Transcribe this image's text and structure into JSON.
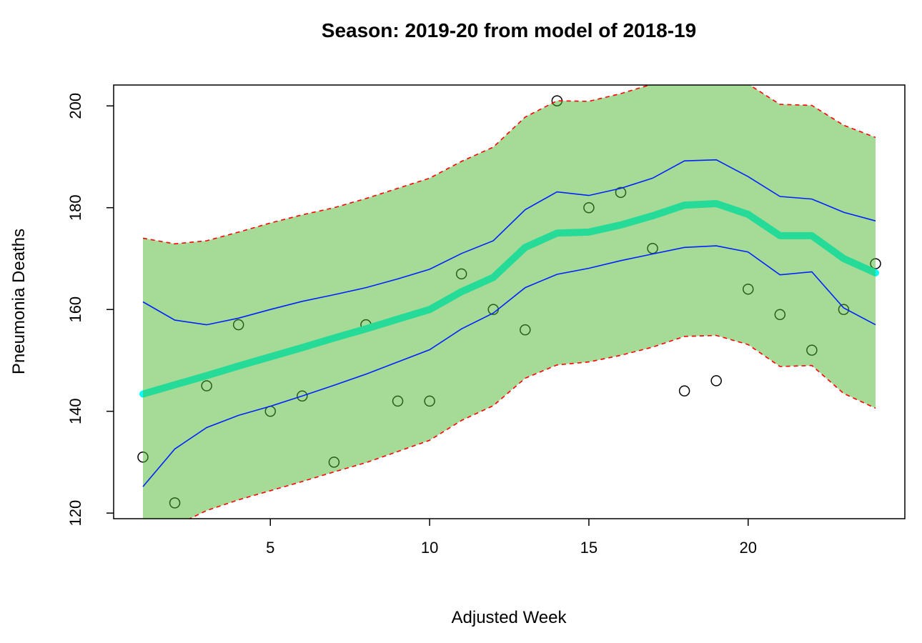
{
  "chart_data": {
    "type": "line",
    "title": "Season: 2019-20 from model of 2018-19",
    "xlabel": "Adjusted Week",
    "ylabel": "Pneumonia Deaths",
    "xlim": [
      0.08,
      24.92
    ],
    "ylim": [
      118.9,
      204.1
    ],
    "xticks": [
      5,
      10,
      15,
      20
    ],
    "yticks": [
      120,
      140,
      160,
      180,
      200
    ],
    "grid": false,
    "x": [
      1,
      2,
      3,
      4,
      5,
      6,
      7,
      8,
      9,
      10,
      11,
      12,
      13,
      14,
      15,
      16,
      17,
      18,
      19,
      20,
      21,
      22,
      23,
      24
    ],
    "observed": [
      131,
      122,
      145,
      157,
      140,
      143,
      130,
      157,
      142,
      142,
      167,
      160,
      156,
      201,
      180,
      183,
      172,
      144,
      146,
      164,
      159,
      152,
      160,
      169
    ],
    "fit": [
      143.4,
      145.2,
      147.0,
      148.9,
      150.7,
      152.5,
      154.4,
      156.2,
      158.1,
      160.0,
      163.5,
      166.3,
      172.2,
      175.0,
      175.2,
      176.6,
      178.4,
      180.5,
      180.8,
      178.7,
      174.5,
      174.5,
      170.0,
      167.2
    ],
    "ci_upper": [
      161.5,
      157.9,
      157.0,
      158.3,
      160.0,
      161.6,
      162.9,
      164.3,
      166.0,
      167.9,
      171.0,
      173.5,
      179.6,
      183.1,
      182.4,
      183.8,
      185.8,
      189.2,
      189.4,
      186.1,
      182.2,
      181.7,
      179.1,
      177.4
    ],
    "ci_lower": [
      125.2,
      132.6,
      136.8,
      139.2,
      141.0,
      143.0,
      145.1,
      147.3,
      149.7,
      152.1,
      156.2,
      159.3,
      164.3,
      166.9,
      168.1,
      169.6,
      170.9,
      172.2,
      172.5,
      171.3,
      166.8,
      167.4,
      160.3,
      157.0
    ],
    "pi_upper": [
      174.0,
      172.9,
      173.5,
      175.2,
      177.0,
      178.6,
      180.0,
      181.8,
      183.8,
      185.8,
      189.1,
      191.9,
      197.8,
      201.0,
      200.9,
      202.4,
      204.3,
      207.0,
      207.5,
      204.3,
      200.3,
      200.1,
      196.2,
      193.8
    ],
    "pi_lower": [
      112.5,
      117.5,
      120.5,
      122.6,
      124.4,
      126.2,
      128.1,
      129.9,
      132.1,
      134.3,
      138.2,
      141.1,
      146.5,
      149.1,
      149.7,
      151.0,
      152.6,
      154.7,
      154.9,
      153.1,
      148.8,
      149.0,
      143.5,
      140.6
    ],
    "colors": {
      "band": "#4cb82f",
      "fit": "#00ffff",
      "ci": "#0022ff",
      "pi": "#ff0000",
      "points": "#000000"
    }
  }
}
